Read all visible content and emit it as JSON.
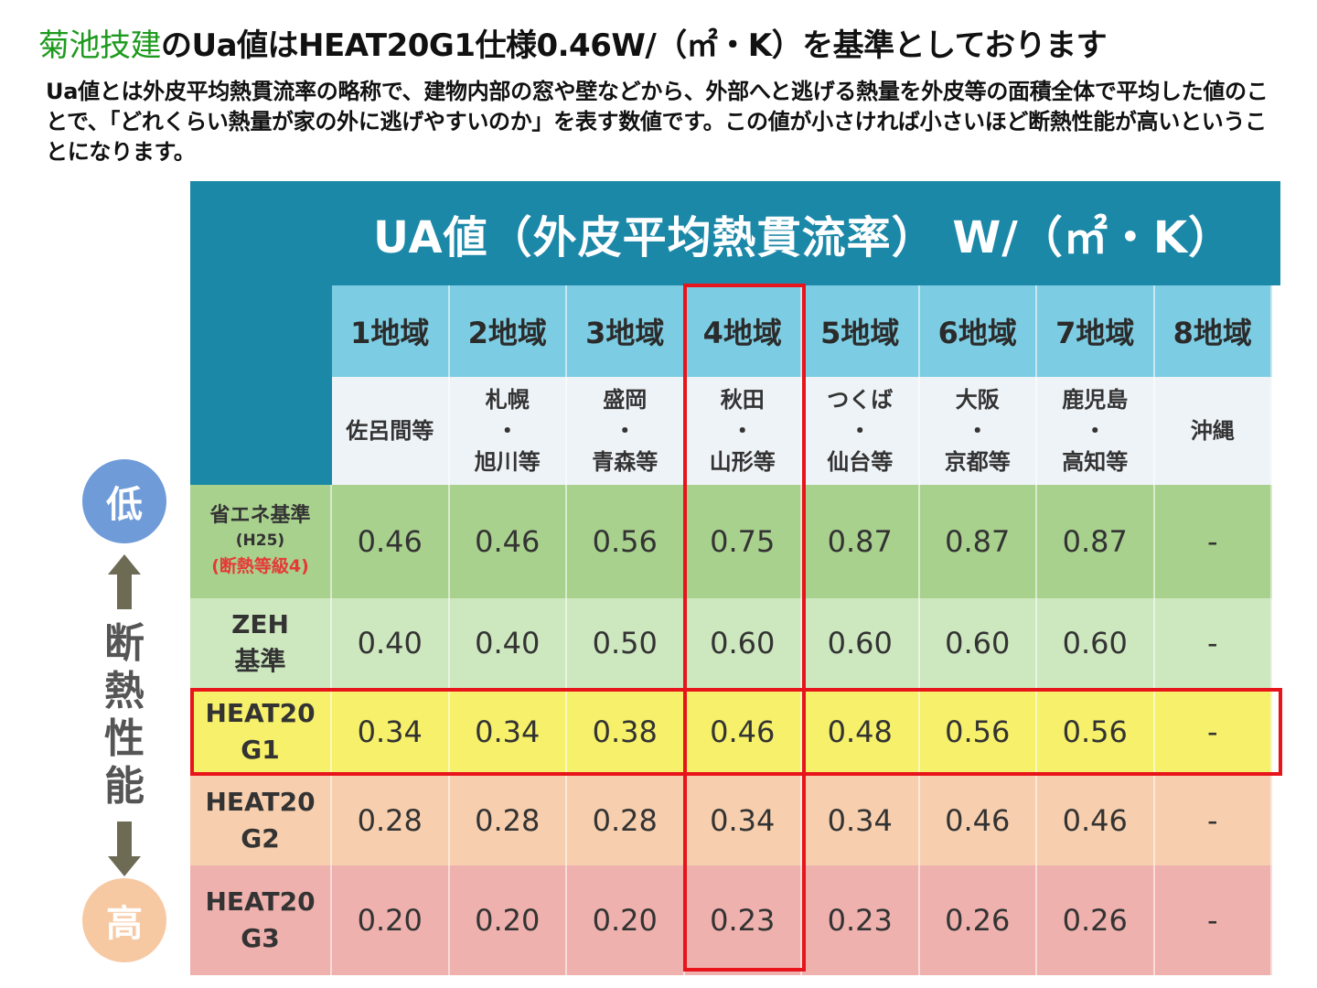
{
  "headline": {
    "company": "菊池技建",
    "text": "のUa値はHEAT20G1仕様0.46W/（㎡・K）を基準としております"
  },
  "description": "Ua値とは外皮平均熱貫流率の略称で、建物内部の窓や壁などから、外部へと逃げる熱量を外皮等の面積全体で平均した値のことで、「どれくらい熱量が家の外に逃げやすいのか」を表す数値です。この値が小さければ小さいほど断熱性能が高いということになります。",
  "side": {
    "low": "低",
    "high": "高",
    "label": [
      "断",
      "熱",
      "性",
      "能"
    ]
  },
  "table": {
    "title": "UA値（外皮平均熱貫流率） W/（㎡・K）",
    "regions": [
      "1地域",
      "2地域",
      "3地域",
      "4地域",
      "5地域",
      "6地域",
      "7地域",
      "8地域"
    ],
    "cities": [
      [
        "佐呂間等"
      ],
      [
        "札幌",
        "・",
        "旭川等"
      ],
      [
        "盛岡",
        "・",
        "青森等"
      ],
      [
        "秋田",
        "・",
        "山形等"
      ],
      [
        "つくば",
        "・",
        "仙台等"
      ],
      [
        "大阪",
        "・",
        "京都等"
      ],
      [
        "鹿児島",
        "・",
        "高知等"
      ],
      [
        "沖縄"
      ]
    ],
    "rows": [
      {
        "label_main": "省エネ基準",
        "label_sub": "(H25)",
        "label_note": "(断熱等級4)",
        "values": [
          "0.46",
          "0.46",
          "0.56",
          "0.75",
          "0.87",
          "0.87",
          "0.87",
          "-"
        ],
        "color": "#a9d18e"
      },
      {
        "label_main": "ZEH",
        "label_main2": "基準",
        "values": [
          "0.40",
          "0.40",
          "0.50",
          "0.60",
          "0.60",
          "0.60",
          "0.60",
          "-"
        ],
        "color": "#cde7bf"
      },
      {
        "label_main": "HEAT20",
        "label_main2": "G1",
        "values": [
          "0.34",
          "0.34",
          "0.38",
          "0.46",
          "0.48",
          "0.56",
          "0.56",
          "-"
        ],
        "color": "#f6f06a"
      },
      {
        "label_main": "HEAT20",
        "label_main2": "G2",
        "values": [
          "0.28",
          "0.28",
          "0.28",
          "0.34",
          "0.34",
          "0.46",
          "0.46",
          "-"
        ],
        "color": "#f8cfae"
      },
      {
        "label_main": "HEAT20",
        "label_main2": "G3",
        "values": [
          "0.20",
          "0.20",
          "0.20",
          "0.23",
          "0.23",
          "0.26",
          "0.26",
          "-"
        ],
        "color": "#eeb1ad"
      }
    ]
  },
  "colors": {
    "header": "#1c88a8",
    "region_row": "#7ccde3",
    "city_row": "#eef3f7",
    "highlight_border": "#e8141b",
    "company_green": "#1e9a1e"
  }
}
